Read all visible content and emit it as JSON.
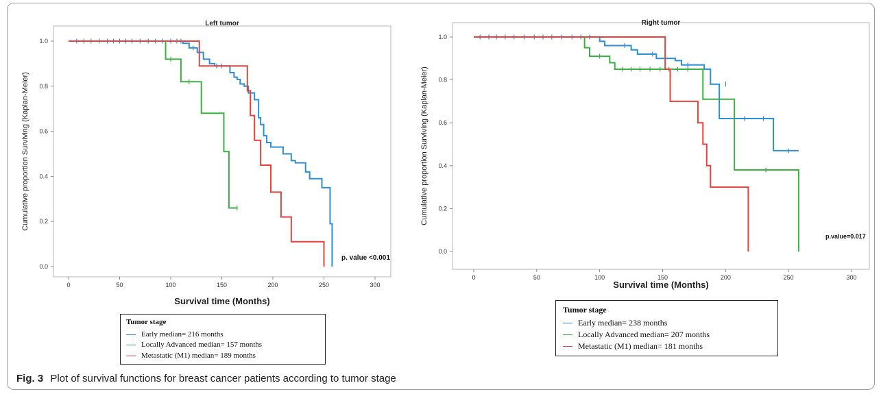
{
  "caption": {
    "label": "Fig. 3",
    "text": "Plot of survival functions for breast cancer patients according to tumor stage"
  },
  "chart_data": [
    {
      "type": "line",
      "subtype": "kaplan-meier step",
      "title": "Left tumor",
      "xlabel": "Survival time (Months)",
      "ylabel": "Cumulative proportion Surviving (Kaplan-Meier)",
      "xlim": [
        0,
        300
      ],
      "ylim": [
        0,
        1
      ],
      "xticks": [
        "0",
        "50",
        "100",
        "150",
        "200",
        "250",
        "300"
      ],
      "yticks": [
        "0.0",
        "0.2",
        "0.4",
        "0.6",
        "0.8",
        "1.0"
      ],
      "annotation": "p. value <0.001",
      "legend": {
        "title": "Tumor stage",
        "placement": "below",
        "entries": [
          "Early median= 216 months",
          "Locally Advanced  median= 157 months",
          "Metastatic (M1) median= 189 months"
        ]
      },
      "series": [
        {
          "name": "Early median= 216 months",
          "color": "#2e8fd6",
          "x": [
            0,
            112,
            118,
            126,
            132,
            138,
            143,
            148,
            155,
            158,
            162,
            165,
            168,
            172,
            176,
            182,
            186,
            188,
            191,
            194,
            198,
            208,
            210,
            218,
            222,
            232,
            236,
            245,
            248,
            256,
            258
          ],
          "y": [
            1.0,
            0.99,
            0.97,
            0.95,
            0.92,
            0.9,
            0.89,
            0.89,
            0.89,
            0.86,
            0.84,
            0.83,
            0.81,
            0.8,
            0.77,
            0.74,
            0.66,
            0.63,
            0.58,
            0.55,
            0.53,
            0.53,
            0.5,
            0.47,
            0.46,
            0.42,
            0.39,
            0.39,
            0.35,
            0.19,
            0.0
          ],
          "censored": [
            [
              8,
              1.0
            ],
            [
              15,
              1.0
            ],
            [
              22,
              1.0
            ],
            [
              30,
              1.0
            ],
            [
              38,
              1.0
            ],
            [
              44,
              1.0
            ],
            [
              50,
              1.0
            ],
            [
              56,
              1.0
            ],
            [
              62,
              1.0
            ],
            [
              70,
              1.0
            ],
            [
              78,
              1.0
            ],
            [
              85,
              1.0
            ],
            [
              92,
              1.0
            ],
            [
              100,
              1.0
            ],
            [
              106,
              1.0
            ],
            [
              110,
              1.0
            ],
            [
              122,
              0.97
            ],
            [
              145,
              0.89
            ],
            [
              150,
              0.89
            ]
          ]
        },
        {
          "name": "Locally Advanced  median= 157 months",
          "color": "#3cb043",
          "x": [
            0,
            95,
            110,
            130,
            152,
            157,
            165
          ],
          "y": [
            1.0,
            0.92,
            0.82,
            0.68,
            0.51,
            0.26,
            0.26
          ],
          "censored": [
            [
              100,
              0.92
            ],
            [
              118,
              0.82
            ],
            [
              165,
              0.26
            ]
          ]
        },
        {
          "name": "Metastatic (M1) median= 189 months",
          "color": "#e8403a",
          "x": [
            0,
            128,
            175,
            178,
            182,
            188,
            198,
            208,
            218,
            232,
            250
          ],
          "y": [
            1.0,
            0.89,
            0.78,
            0.67,
            0.56,
            0.45,
            0.33,
            0.22,
            0.11,
            0.11,
            0.0
          ],
          "censored": []
        }
      ]
    },
    {
      "type": "line",
      "subtype": "kaplan-meier step",
      "title": "Right tumor",
      "xlabel": "Survival time (Months)",
      "ylabel": "Cumulative proportion Surviving (Kaplan-Meier)",
      "xlim": [
        0,
        300
      ],
      "ylim": [
        0,
        1
      ],
      "xticks": [
        "0",
        "50",
        "100",
        "150",
        "200",
        "250",
        "300"
      ],
      "yticks": [
        "0.0",
        "0.2",
        "0.4",
        "0.6",
        "0.8",
        "1.0"
      ],
      "annotation": "p.value=0.017",
      "legend": {
        "title": "Tumor stage",
        "placement": "below",
        "entries": [
          "Early median= 238 months",
          "Locally Advanced  median= 207 months",
          "Metastatic (M1) median= 181 months"
        ]
      },
      "series": [
        {
          "name": "Early median= 238 months",
          "color": "#2e8fd6",
          "x": [
            0,
            100,
            104,
            110,
            125,
            130,
            135,
            145,
            152,
            160,
            165,
            175,
            178,
            183,
            188,
            190,
            195,
            205,
            222,
            238,
            258
          ],
          "y": [
            1.0,
            0.98,
            0.96,
            0.96,
            0.94,
            0.92,
            0.92,
            0.9,
            0.9,
            0.89,
            0.87,
            0.87,
            0.87,
            0.85,
            0.78,
            0.78,
            0.62,
            0.62,
            0.62,
            0.47,
            0.47
          ],
          "censored": [
            [
              5,
              1.0
            ],
            [
              12,
              1.0
            ],
            [
              18,
              1.0
            ],
            [
              25,
              1.0
            ],
            [
              32,
              1.0
            ],
            [
              40,
              1.0
            ],
            [
              48,
              1.0
            ],
            [
              55,
              1.0
            ],
            [
              62,
              1.0
            ],
            [
              70,
              1.0
            ],
            [
              78,
              1.0
            ],
            [
              85,
              1.0
            ],
            [
              92,
              1.0
            ],
            [
              120,
              0.96
            ],
            [
              142,
              0.92
            ],
            [
              170,
              0.87
            ],
            [
              200,
              0.78
            ],
            [
              215,
              0.62
            ],
            [
              230,
              0.62
            ],
            [
              250,
              0.47
            ]
          ]
        },
        {
          "name": "Locally Advanced  median= 207 months",
          "color": "#3cb043",
          "x": [
            0,
            88,
            92,
            98,
            108,
            112,
            178,
            182,
            207,
            256,
            258
          ],
          "y": [
            1.0,
            0.95,
            0.91,
            0.91,
            0.88,
            0.85,
            0.85,
            0.71,
            0.38,
            0.38,
            0.0
          ],
          "censored": [
            [
              100,
              0.91
            ],
            [
              118,
              0.85
            ],
            [
              125,
              0.85
            ],
            [
              132,
              0.85
            ],
            [
              140,
              0.85
            ],
            [
              148,
              0.85
            ],
            [
              155,
              0.85
            ],
            [
              162,
              0.85
            ],
            [
              170,
              0.85
            ],
            [
              232,
              0.38
            ]
          ]
        },
        {
          "name": "Metastatic (M1) median= 181 months",
          "color": "#e8403a",
          "x": [
            0,
            152,
            156,
            175,
            178,
            182,
            185,
            188,
            205,
            218
          ],
          "y": [
            1.0,
            0.85,
            0.7,
            0.7,
            0.6,
            0.5,
            0.4,
            0.3,
            0.3,
            0.0
          ],
          "censored": []
        }
      ]
    }
  ]
}
